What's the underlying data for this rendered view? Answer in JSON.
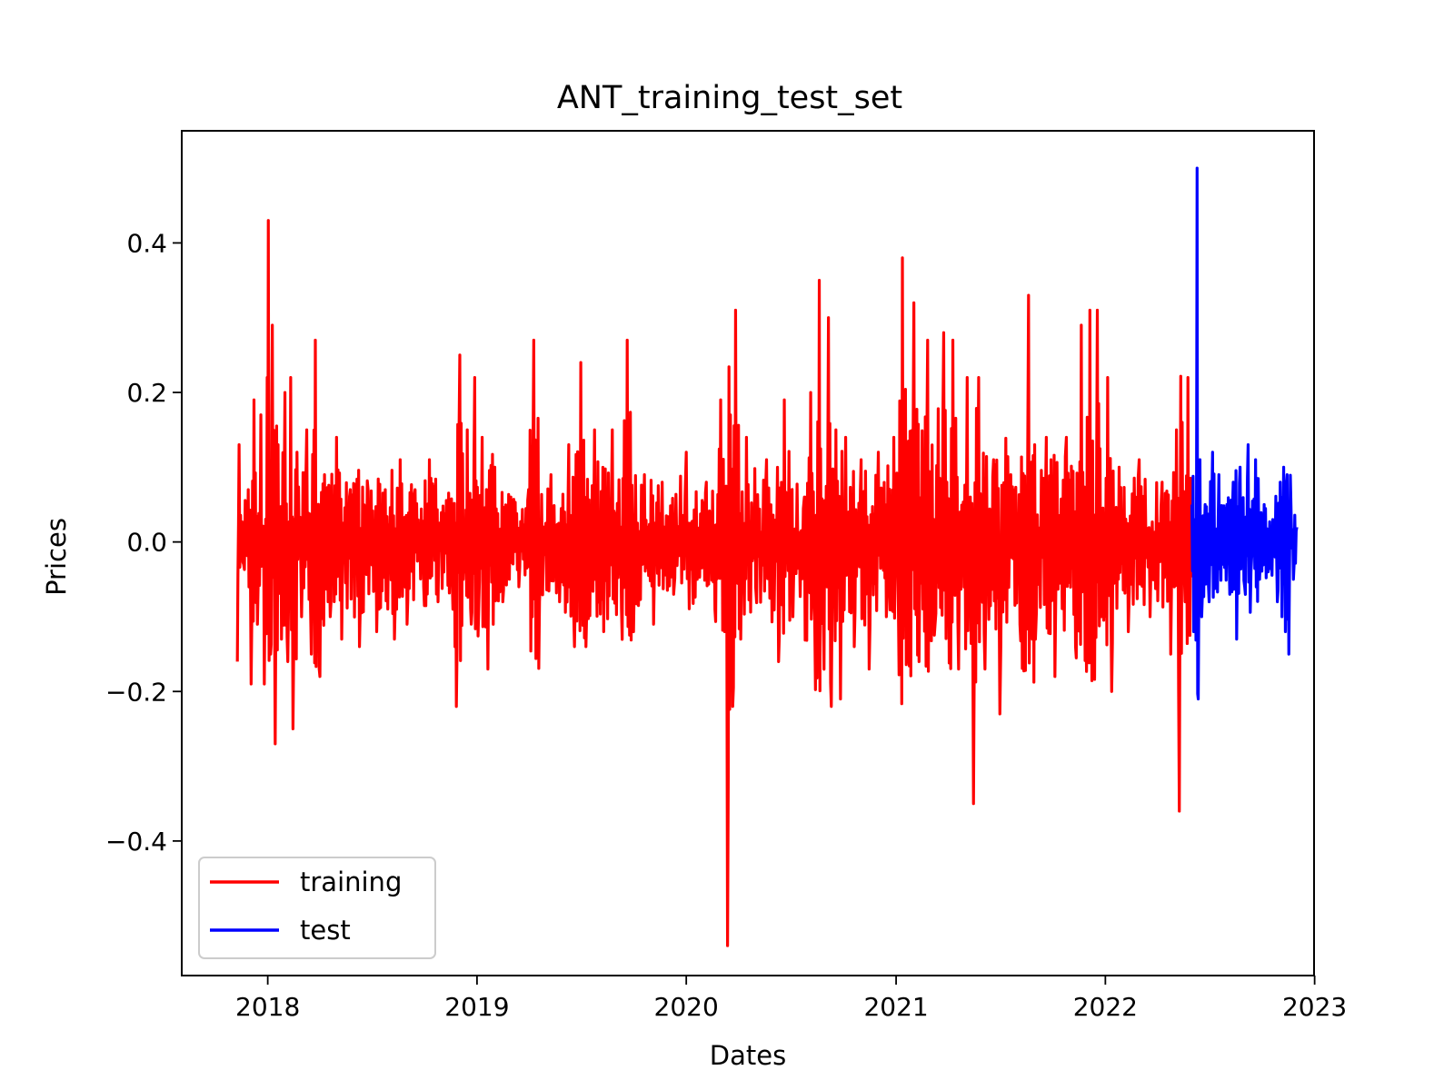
{
  "chart_data": {
    "type": "line",
    "title": "ANT_training_test_set",
    "xlabel": "Dates",
    "ylabel": "Prices",
    "x_ticks": [
      "2018",
      "2019",
      "2020",
      "2021",
      "2022",
      "2023"
    ],
    "y_ticks": [
      "−0.4",
      "−0.2",
      "0.0",
      "0.2",
      "0.4"
    ],
    "xlim": [
      "2017-08-04",
      "2022-12-31"
    ],
    "ylim": [
      -0.58,
      0.55
    ],
    "grid": false,
    "legend_position": "lower-left",
    "series": [
      {
        "name": "training",
        "color": "#ff0000",
        "x_range": [
          "2017-11-09",
          "2022-06-01"
        ],
        "points": [
          [
            "2017-11-09",
            -0.16
          ],
          [
            "2017-11-12",
            0.13
          ],
          [
            "2017-11-20",
            -0.03
          ],
          [
            "2017-11-28",
            0.07
          ],
          [
            "2017-12-03",
            -0.19
          ],
          [
            "2017-12-08",
            0.19
          ],
          [
            "2017-12-14",
            -0.11
          ],
          [
            "2017-12-20",
            0.17
          ],
          [
            "2017-12-26",
            -0.19
          ],
          [
            "2017-12-31",
            0.22
          ],
          [
            "2018-01-02",
            0.43
          ],
          [
            "2018-01-06",
            -0.15
          ],
          [
            "2018-01-09",
            0.29
          ],
          [
            "2018-01-14",
            -0.27
          ],
          [
            "2018-01-19",
            0.13
          ],
          [
            "2018-01-25",
            -0.13
          ],
          [
            "2018-01-31",
            0.2
          ],
          [
            "2018-02-05",
            -0.16
          ],
          [
            "2018-02-10",
            0.22
          ],
          [
            "2018-02-14",
            -0.25
          ],
          [
            "2018-02-21",
            0.12
          ],
          [
            "2018-03-01",
            -0.1
          ],
          [
            "2018-03-10",
            0.15
          ],
          [
            "2018-03-18",
            -0.15
          ],
          [
            "2018-03-25",
            0.27
          ],
          [
            "2018-04-02",
            -0.18
          ],
          [
            "2018-04-10",
            0.09
          ],
          [
            "2018-04-20",
            -0.1
          ],
          [
            "2018-05-01",
            0.14
          ],
          [
            "2018-05-10",
            -0.13
          ],
          [
            "2018-05-25",
            0.07
          ],
          [
            "2018-06-10",
            -0.14
          ],
          [
            "2018-06-25",
            0.07
          ],
          [
            "2018-07-10",
            -0.12
          ],
          [
            "2018-07-25",
            0.07
          ],
          [
            "2018-08-10",
            -0.13
          ],
          [
            "2018-08-20",
            0.11
          ],
          [
            "2018-09-01",
            -0.11
          ],
          [
            "2018-09-15",
            0.07
          ],
          [
            "2018-09-30",
            -0.06
          ],
          [
            "2018-10-10",
            0.11
          ],
          [
            "2018-10-25",
            -0.08
          ],
          [
            "2018-11-10",
            0.03
          ],
          [
            "2018-11-20",
            -0.09
          ],
          [
            "2018-11-26",
            -0.22
          ],
          [
            "2018-12-02",
            0.25
          ],
          [
            "2018-12-08",
            -0.05
          ],
          [
            "2018-12-15",
            0.15
          ],
          [
            "2018-12-22",
            -0.11
          ],
          [
            "2018-12-28",
            0.22
          ],
          [
            "2019-01-04",
            -0.09
          ],
          [
            "2019-01-10",
            0.14
          ],
          [
            "2019-01-20",
            -0.17
          ],
          [
            "2019-02-01",
            0.1
          ],
          [
            "2019-02-15",
            -0.08
          ],
          [
            "2019-03-01",
            0.06
          ],
          [
            "2019-03-15",
            -0.06
          ],
          [
            "2019-04-01",
            0.07
          ],
          [
            "2019-04-10",
            0.27
          ],
          [
            "2019-04-20",
            -0.08
          ],
          [
            "2019-05-10",
            0.09
          ],
          [
            "2019-05-25",
            -0.08
          ],
          [
            "2019-06-10",
            0.13
          ],
          [
            "2019-06-20",
            -0.14
          ],
          [
            "2019-07-01",
            0.24
          ],
          [
            "2019-07-10",
            -0.14
          ],
          [
            "2019-07-25",
            0.15
          ],
          [
            "2019-08-10",
            -0.12
          ],
          [
            "2019-08-25",
            0.15
          ],
          [
            "2019-09-10",
            -0.09
          ],
          [
            "2019-09-20",
            0.27
          ],
          [
            "2019-10-01",
            -0.12
          ],
          [
            "2019-10-20",
            0.09
          ],
          [
            "2019-11-05",
            -0.11
          ],
          [
            "2019-11-20",
            0.08
          ],
          [
            "2019-12-10",
            -0.07
          ],
          [
            "2020-01-01",
            0.12
          ],
          [
            "2020-01-20",
            -0.05
          ],
          [
            "2020-02-05",
            0.08
          ],
          [
            "2020-02-20",
            -0.09
          ],
          [
            "2020-03-01",
            0.19
          ],
          [
            "2020-03-08",
            -0.12
          ],
          [
            "2020-03-13",
            -0.54
          ],
          [
            "2020-03-18",
            0.17
          ],
          [
            "2020-03-22",
            -0.22
          ],
          [
            "2020-03-27",
            0.31
          ],
          [
            "2020-04-05",
            -0.13
          ],
          [
            "2020-04-15",
            0.14
          ],
          [
            "2020-05-01",
            -0.06
          ],
          [
            "2020-05-20",
            0.11
          ],
          [
            "2020-06-10",
            -0.16
          ],
          [
            "2020-06-20",
            0.19
          ],
          [
            "2020-07-05",
            -0.1
          ],
          [
            "2020-07-25",
            0.06
          ],
          [
            "2020-08-05",
            0.2
          ],
          [
            "2020-08-12",
            -0.1
          ],
          [
            "2020-08-20",
            0.35
          ],
          [
            "2020-08-27",
            -0.09
          ],
          [
            "2020-09-05",
            0.3
          ],
          [
            "2020-09-10",
            -0.22
          ],
          [
            "2020-09-18",
            0.15
          ],
          [
            "2020-09-26",
            -0.21
          ],
          [
            "2020-10-05",
            0.14
          ],
          [
            "2020-10-20",
            -0.14
          ],
          [
            "2020-11-01",
            0.11
          ],
          [
            "2020-11-15",
            -0.17
          ],
          [
            "2020-12-01",
            0.12
          ],
          [
            "2020-12-15",
            -0.1
          ],
          [
            "2020-12-28",
            0.14
          ],
          [
            "2021-01-05",
            -0.09
          ],
          [
            "2021-01-12",
            0.38
          ],
          [
            "2021-01-20",
            -0.15
          ],
          [
            "2021-02-01",
            0.32
          ],
          [
            "2021-02-10",
            -0.16
          ],
          [
            "2021-02-25",
            0.27
          ],
          [
            "2021-03-10",
            -0.11
          ],
          [
            "2021-03-25",
            0.28
          ],
          [
            "2021-04-05",
            -0.1
          ],
          [
            "2021-04-10",
            0.27
          ],
          [
            "2021-04-20",
            -0.17
          ],
          [
            "2021-05-05",
            0.22
          ],
          [
            "2021-05-16",
            -0.35
          ],
          [
            "2021-05-25",
            0.22
          ],
          [
            "2021-06-05",
            -0.17
          ],
          [
            "2021-06-20",
            0.11
          ],
          [
            "2021-07-01",
            -0.23
          ],
          [
            "2021-07-20",
            0.09
          ],
          [
            "2021-08-05",
            -0.11
          ],
          [
            "2021-08-20",
            0.33
          ],
          [
            "2021-09-01",
            -0.13
          ],
          [
            "2021-09-20",
            0.14
          ],
          [
            "2021-10-05",
            -0.18
          ],
          [
            "2021-10-25",
            0.14
          ],
          [
            "2021-11-10",
            -0.14
          ],
          [
            "2021-11-20",
            0.29
          ],
          [
            "2021-11-28",
            -0.11
          ],
          [
            "2021-12-05",
            0.31
          ],
          [
            "2021-12-12",
            -0.13
          ],
          [
            "2021-12-18",
            0.31
          ],
          [
            "2021-12-25",
            -0.1
          ],
          [
            "2022-01-05",
            0.22
          ],
          [
            "2022-01-12",
            -0.2
          ],
          [
            "2022-01-25",
            0.1
          ],
          [
            "2022-02-10",
            -0.12
          ],
          [
            "2022-03-01",
            0.11
          ],
          [
            "2022-03-20",
            -0.1
          ],
          [
            "2022-04-10",
            0.08
          ],
          [
            "2022-04-25",
            -0.15
          ],
          [
            "2022-05-05",
            0.15
          ],
          [
            "2022-05-10",
            -0.36
          ],
          [
            "2022-05-15",
            0.16
          ],
          [
            "2022-05-20",
            -0.08
          ],
          [
            "2022-05-25",
            0.22
          ],
          [
            "2022-06-01",
            0.0
          ]
        ]
      },
      {
        "name": "test",
        "color": "#0000ff",
        "x_range": [
          "2022-06-01",
          "2022-12-01"
        ],
        "points": [
          [
            "2022-06-01",
            0.05
          ],
          [
            "2022-06-04",
            -0.12
          ],
          [
            "2022-06-07",
            0.03
          ],
          [
            "2022-06-10",
            0.5
          ],
          [
            "2022-06-12",
            -0.21
          ],
          [
            "2022-06-15",
            0.11
          ],
          [
            "2022-06-18",
            -0.1
          ],
          [
            "2022-06-24",
            0.05
          ],
          [
            "2022-07-01",
            -0.08
          ],
          [
            "2022-07-07",
            0.12
          ],
          [
            "2022-07-12",
            -0.05
          ],
          [
            "2022-07-18",
            0.09
          ],
          [
            "2022-07-24",
            -0.03
          ],
          [
            "2022-08-01",
            0.05
          ],
          [
            "2022-08-06",
            -0.07
          ],
          [
            "2022-08-12",
            0.08
          ],
          [
            "2022-08-18",
            -0.13
          ],
          [
            "2022-08-24",
            0.1
          ],
          [
            "2022-09-01",
            -0.06
          ],
          [
            "2022-09-07",
            0.13
          ],
          [
            "2022-09-12",
            -0.04
          ],
          [
            "2022-09-20",
            0.11
          ],
          [
            "2022-09-27",
            -0.05
          ],
          [
            "2022-10-05",
            0.05
          ],
          [
            "2022-10-12",
            -0.04
          ],
          [
            "2022-10-20",
            0.03
          ],
          [
            "2022-10-28",
            -0.08
          ],
          [
            "2022-11-02",
            0.08
          ],
          [
            "2022-11-05",
            -0.1
          ],
          [
            "2022-11-08",
            0.1
          ],
          [
            "2022-11-11",
            -0.12
          ],
          [
            "2022-11-14",
            0.09
          ],
          [
            "2022-11-17",
            -0.15
          ],
          [
            "2022-11-21",
            0.04
          ],
          [
            "2022-11-25",
            -0.05
          ],
          [
            "2022-12-01",
            0.02
          ]
        ]
      }
    ],
    "legend": [
      {
        "label": "training",
        "color": "#ff0000"
      },
      {
        "label": "test",
        "color": "#0000ff"
      }
    ]
  }
}
